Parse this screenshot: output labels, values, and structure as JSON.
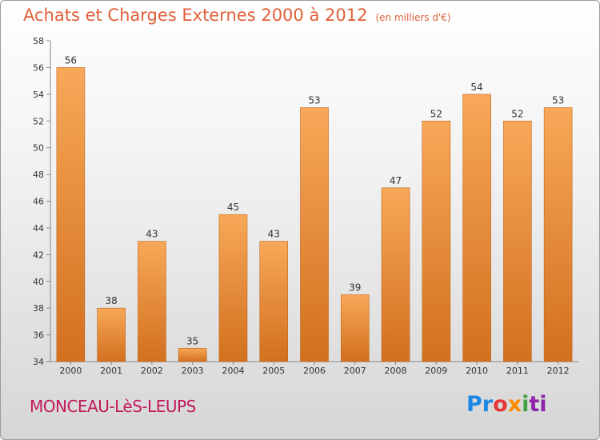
{
  "header": {
    "title": "Achats et Charges Externes 2000 à 2012",
    "unit": "(en milliers d'€)"
  },
  "footer": {
    "place": "MONCEAU-LèS-LEUPS",
    "logo_letters": [
      "Pr",
      "o",
      "x",
      "i",
      "ti"
    ]
  },
  "colors": {
    "bar_top": "#f7a858",
    "bar_bottom": "#d2701e",
    "bar_stroke": "#c0651a",
    "title": "#e0603a",
    "place": "#c2185b"
  },
  "chart_data": {
    "type": "bar",
    "title": "Achats et Charges Externes 2000 à 2012",
    "subtitle": "(en milliers d'€)",
    "xlabel": "",
    "ylabel": "",
    "categories": [
      "2000",
      "2001",
      "2002",
      "2003",
      "2004",
      "2005",
      "2006",
      "2007",
      "2008",
      "2009",
      "2010",
      "2011",
      "2012"
    ],
    "values": [
      56,
      38,
      43,
      35,
      45,
      43,
      53,
      39,
      47,
      52,
      54,
      52,
      53
    ],
    "ylim": [
      34,
      58
    ],
    "yticks": [
      34,
      36,
      38,
      40,
      42,
      44,
      46,
      48,
      50,
      52,
      54,
      56,
      58
    ],
    "grid": false,
    "data_labels": true
  }
}
